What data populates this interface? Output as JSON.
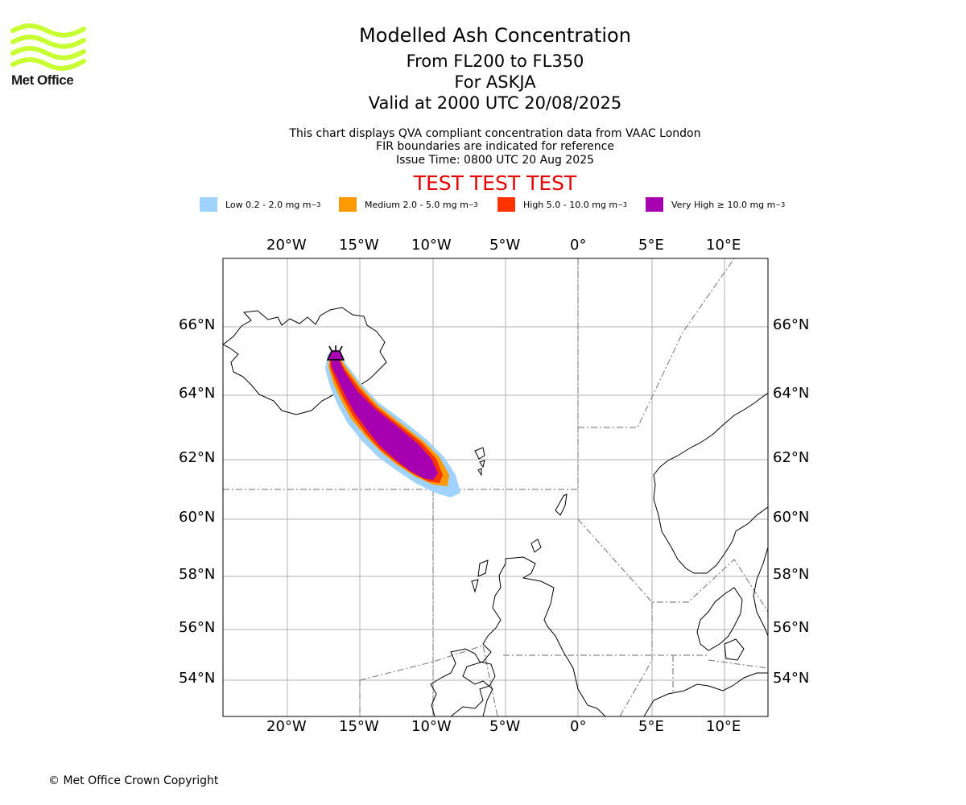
{
  "header": {
    "title": "Modelled Ash Concentration",
    "subtitle_levels": "From FL200 to FL350",
    "subtitle_volcano": "For ASKJA",
    "subtitle_valid": "Valid at 2000 UTC 20/08/2025",
    "info_line1": "This chart displays QVA compliant concentration data from VAAC London",
    "info_line2": "FIR boundaries are indicated for reference",
    "info_line3": "Issue Time: 0800 UTC 20 Aug 2025",
    "test_banner": "TEST TEST TEST"
  },
  "logo": {
    "text": "Met Office",
    "color": "#c8ff32"
  },
  "legend": [
    {
      "label": "Low 0.2 - 2.0 mg m",
      "sup": "−3",
      "color": "#a0d2ff"
    },
    {
      "label": "Medium 2.0 - 5.0 mg m",
      "sup": "−3",
      "color": "#ff9900"
    },
    {
      "label": "High 5.0 - 10.0 mg m",
      "sup": "−3",
      "color": "#ff3300"
    },
    {
      "label": "Very High ≥ 10.0 mg m",
      "sup": "−3",
      "color": "#a600b0"
    }
  ],
  "map": {
    "lon_ticks": [
      "20°W",
      "15°W",
      "10°W",
      "5°W",
      "0°",
      "5°E",
      "10°E"
    ],
    "lat_ticks": [
      "66°N",
      "64°N",
      "62°N",
      "60°N",
      "58°N",
      "56°N",
      "54°N"
    ],
    "volcano_name": "ASKJA"
  },
  "footer": {
    "copyright": "© Met Office Crown Copyright"
  }
}
